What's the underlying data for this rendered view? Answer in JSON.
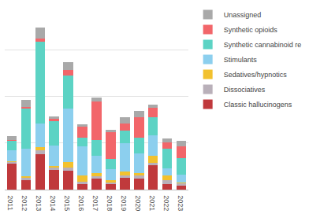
{
  "chart_data": {
    "type": "bar",
    "stacked": true,
    "grid": true,
    "legend": "right",
    "tick_labels": "x",
    "categories": [
      "2011",
      "2012",
      "2013",
      "2014",
      "2015",
      "2016",
      "2017",
      "2018",
      "2019",
      "2020",
      "2021",
      "2022",
      "2023"
    ],
    "ylim": [
      0,
      40
    ],
    "yticks": [
      0,
      10,
      20,
      30,
      40
    ],
    "series": [
      {
        "name": "Classic hallucinogens",
        "color": "#c0393c",
        "values": [
          5.6,
          2.0,
          7.6,
          4.2,
          4.1,
          1.1,
          2.4,
          1.2,
          2.6,
          2.3,
          5.3,
          1.2,
          0.8
        ]
      },
      {
        "name": "Dissociatives",
        "color": "#b9b0b9",
        "values": [
          0.3,
          0.6,
          0.8,
          0.5,
          0.6,
          0.6,
          0.5,
          0.3,
          0.5,
          0.8,
          0.5,
          0.8,
          0.5
        ]
      },
      {
        "name": "Sedatives/hypnotics",
        "color": "#f2c12e",
        "values": [
          0.1,
          0.3,
          0.7,
          0.3,
          1.2,
          1.4,
          0.6,
          0.6,
          0.8,
          0.5,
          1.4,
          1.0,
          0.2
        ]
      },
      {
        "name": "Stimulants",
        "color": "#8ccfee",
        "values": [
          2.5,
          5.9,
          5.0,
          4.4,
          11.5,
          6.1,
          3.8,
          2.3,
          6.1,
          4.1,
          4.5,
          1.5,
          1.7
        ]
      },
      {
        "name": "Synthetic cannabinoid re",
        "color": "#5cd3c4",
        "values": [
          2.0,
          8.6,
          17.7,
          5.3,
          7.0,
          2.0,
          3.3,
          2.1,
          2.7,
          3.5,
          3.9,
          4.2,
          3.5
        ]
      },
      {
        "name": "Synthetic opioids",
        "color": "#f2666a",
        "values": [
          0.2,
          0.3,
          0.6,
          0.5,
          1.2,
          2.3,
          8.3,
          5.9,
          1.5,
          4.4,
          2.0,
          1.4,
          2.6
        ]
      },
      {
        "name": "Unassigned",
        "color": "#a9a9a9",
        "values": [
          0.8,
          1.5,
          2.4,
          0.5,
          1.7,
          0.5,
          0.9,
          0.5,
          1.4,
          1.2,
          0.6,
          0.8,
          1.2
        ]
      }
    ]
  }
}
